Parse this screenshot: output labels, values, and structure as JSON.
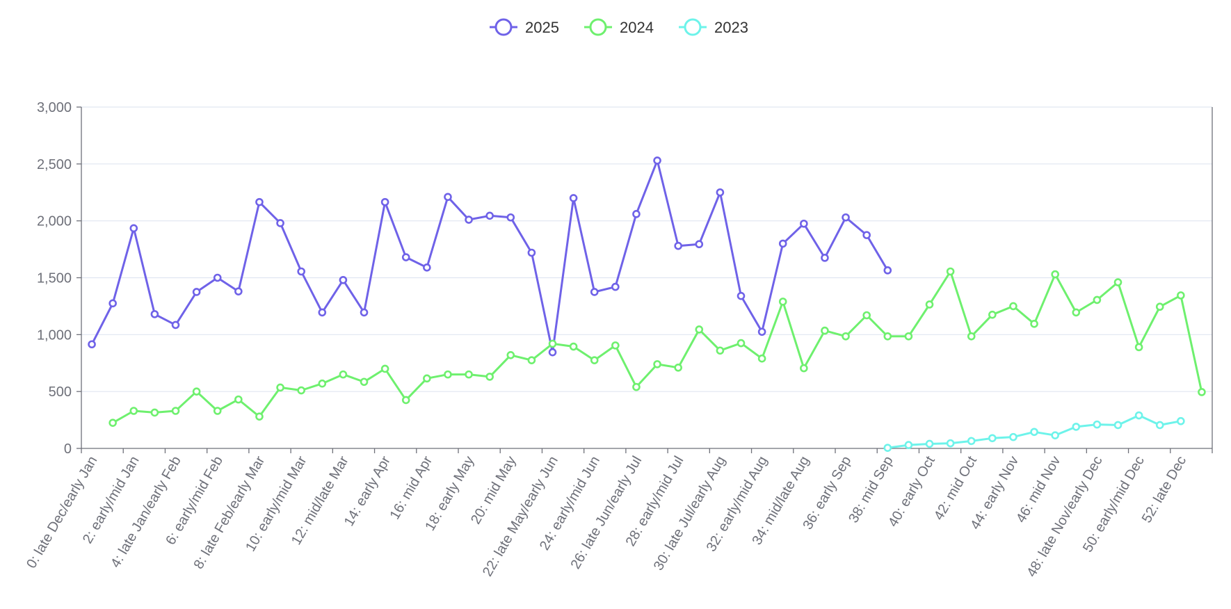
{
  "chart_data": {
    "type": "line",
    "title": "",
    "xlabel": "",
    "ylabel": "",
    "ylim": [
      0,
      3000
    ],
    "yticks": [
      0,
      500,
      1000,
      1500,
      2000,
      2500,
      3000
    ],
    "ytick_labels": [
      "0",
      "500",
      "1,000",
      "1,500",
      "2,000",
      "2,500",
      "3,000"
    ],
    "grid": true,
    "legend_position": "top-center",
    "categories": [
      "0: late Dec/early Jan",
      "1",
      "2: early/mid Jan",
      "3",
      "4: late Jan/early Feb",
      "5",
      "6: early/mid Feb",
      "7",
      "8: late Feb/early Mar",
      "9",
      "10: early/mid Mar",
      "11",
      "12: mid/late Mar",
      "13",
      "14: early Apr",
      "15",
      "16: mid Apr",
      "17",
      "18: early May",
      "19",
      "20: mid May",
      "21",
      "22: late May/early Jun",
      "23",
      "24: early/mid Jun",
      "25",
      "26: late Jun/early Jul",
      "27",
      "28: early/mid Jul",
      "29",
      "30: late Jul/early Aug",
      "31",
      "32: early/mid Aug",
      "33",
      "34: mid/late Aug",
      "35",
      "36: early Sep",
      "37",
      "38: mid Sep",
      "39",
      "40: early Oct",
      "41",
      "42: mid Oct",
      "43",
      "44: early Nov",
      "45",
      "46: mid Nov",
      "47",
      "48: late Nov/early Dec",
      "49",
      "50: early/mid Dec",
      "51",
      "52: late Dec",
      "53"
    ],
    "visible_tick_labels": [
      "0: late Dec/early Jan",
      "2: early/mid Jan",
      "4: late Jan/early Feb",
      "6: early/mid Feb",
      "8: late Feb/early Mar",
      "10: early/mid Mar",
      "12: mid/late Mar",
      "14: early Apr",
      "16: mid Apr",
      "18: early May",
      "20: mid May",
      "22: late May/early Jun",
      "24: early/mid Jun",
      "26: late Jun/early Jul",
      "28: early/mid Jul",
      "30: late Jul/early Aug",
      "32: early/mid Aug",
      "34: mid/late Aug",
      "36: early Sep",
      "38: mid Sep",
      "40: early Oct",
      "42: mid Oct",
      "44: early Nov",
      "46: mid Nov",
      "48: late Nov/early Dec",
      "50: early/mid Dec",
      "52: late Dec"
    ],
    "series": [
      {
        "name": "2025",
        "color": "#6f62e8",
        "values": [
          915,
          1275,
          1935,
          1180,
          1085,
          1375,
          1500,
          1380,
          2165,
          1980,
          1555,
          1195,
          1480,
          1195,
          2165,
          1680,
          1590,
          2210,
          2010,
          2045,
          2030,
          1720,
          845,
          2200,
          1375,
          1420,
          2060,
          2530,
          1780,
          1795,
          2250,
          1340,
          1025,
          1800,
          1975,
          1675,
          2030,
          1875,
          1565,
          null,
          null,
          null,
          null,
          null,
          null,
          null,
          null,
          null,
          null,
          null,
          null,
          null,
          null,
          null
        ]
      },
      {
        "name": "2024",
        "color": "#6ef06e",
        "values": [
          null,
          225,
          330,
          315,
          330,
          500,
          330,
          430,
          280,
          535,
          510,
          570,
          650,
          585,
          700,
          425,
          615,
          650,
          650,
          630,
          820,
          775,
          920,
          895,
          775,
          905,
          540,
          740,
          710,
          1045,
          860,
          925,
          790,
          1290,
          705,
          1035,
          985,
          1170,
          985,
          985,
          1265,
          1555,
          985,
          1175,
          1250,
          1095,
          1530,
          1195,
          1305,
          1460,
          890,
          1245,
          1345,
          495
        ]
      },
      {
        "name": "2023",
        "color": "#6df3ea",
        "values": [
          null,
          null,
          null,
          null,
          null,
          null,
          null,
          null,
          null,
          null,
          null,
          null,
          null,
          null,
          null,
          null,
          null,
          null,
          null,
          null,
          null,
          null,
          null,
          null,
          null,
          null,
          null,
          null,
          null,
          null,
          null,
          null,
          null,
          null,
          null,
          null,
          null,
          null,
          5,
          30,
          40,
          45,
          65,
          90,
          100,
          145,
          115,
          190,
          210,
          205,
          290,
          205,
          240,
          null
        ]
      }
    ]
  }
}
